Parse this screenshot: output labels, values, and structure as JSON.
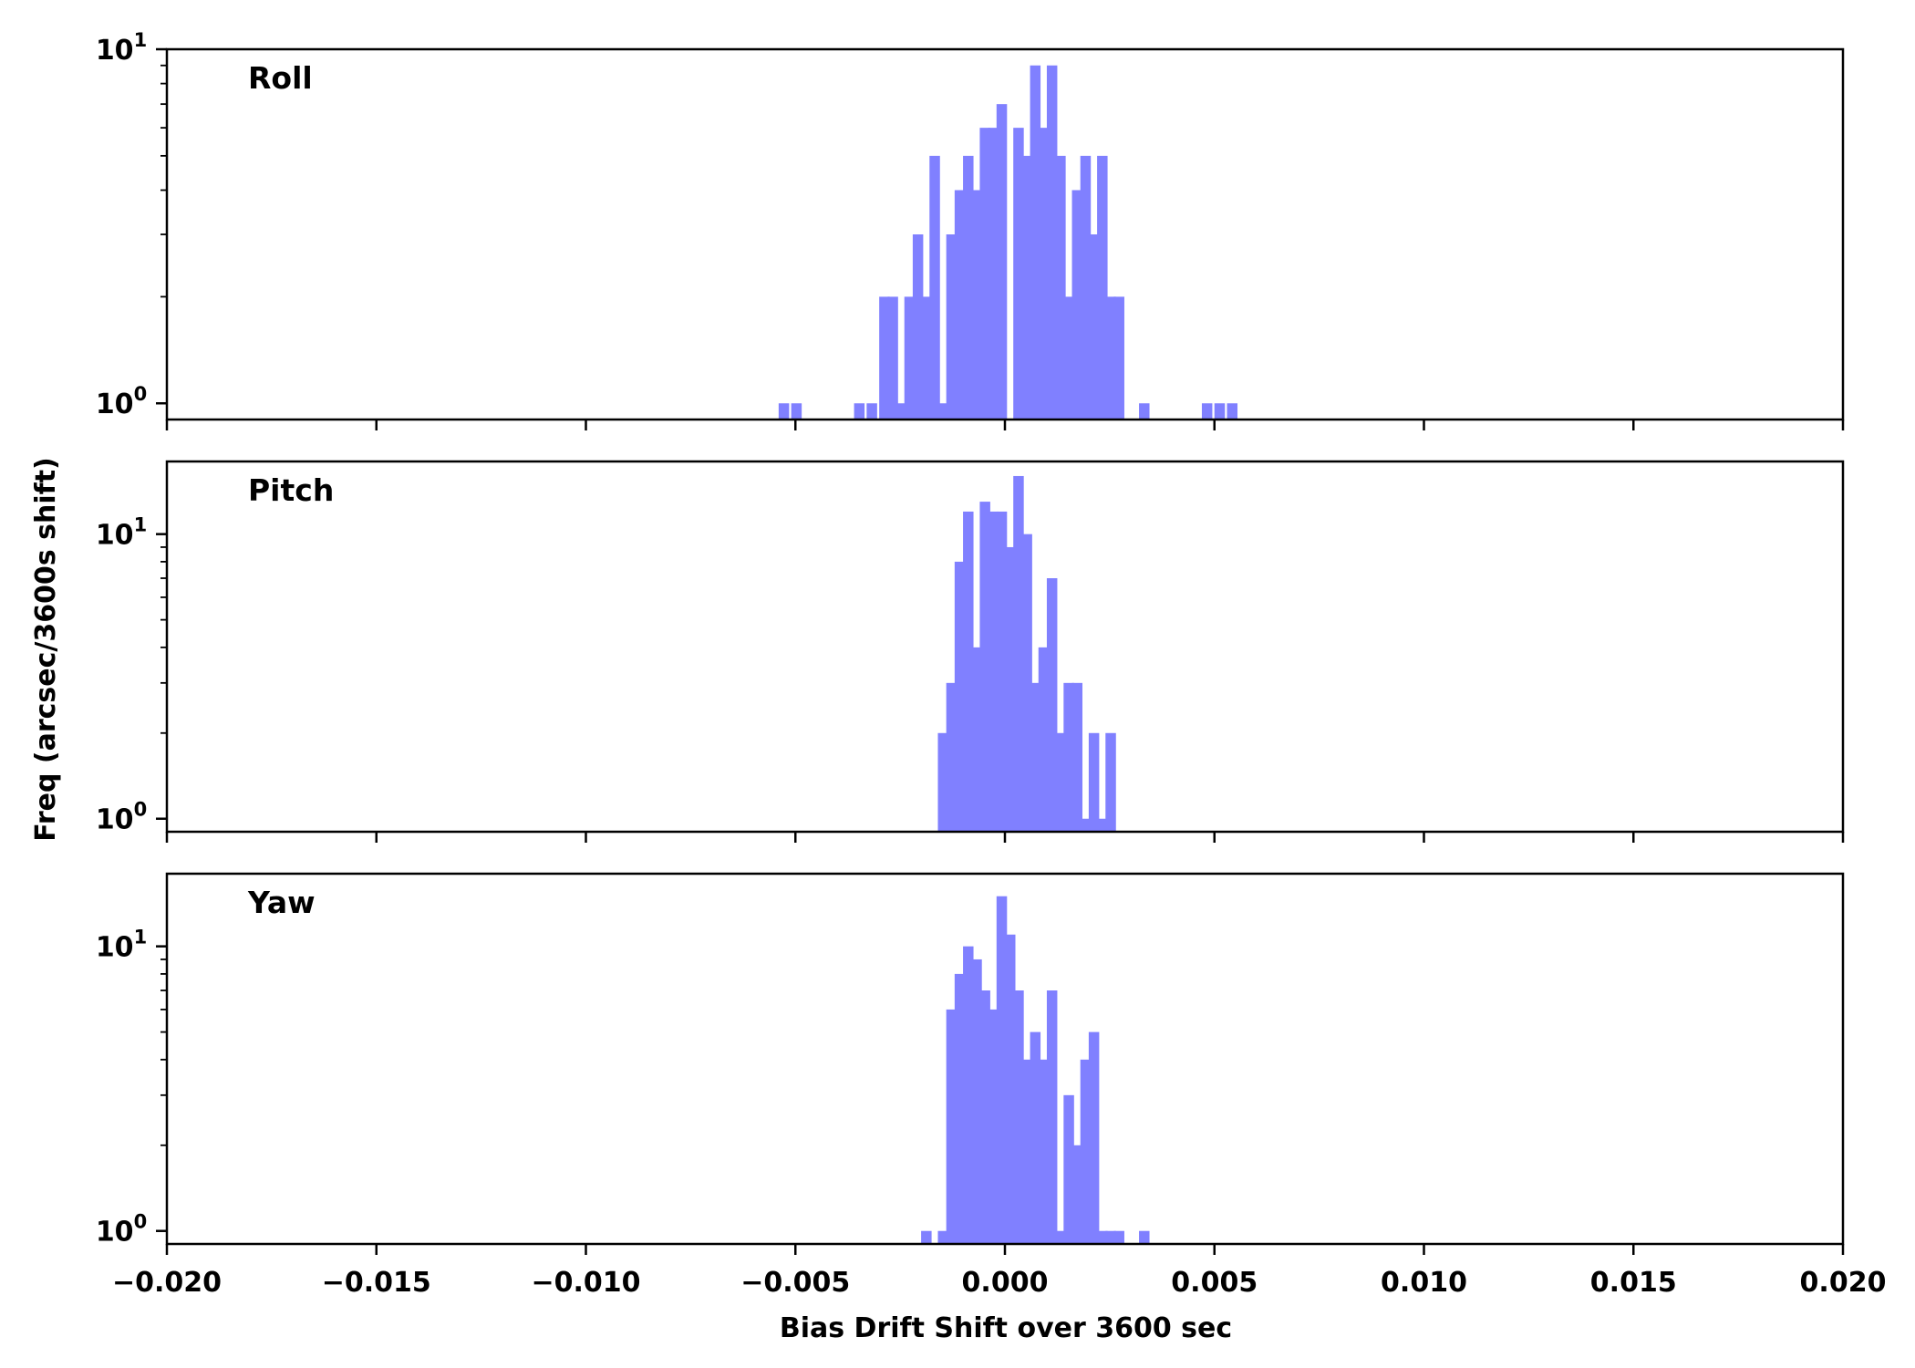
{
  "chart_data": {
    "type": "bar",
    "xlabel": "Bias Drift Shift over 3600 sec",
    "ylabel": "Freq (arcsec/3600s shift)",
    "xlim": [
      -0.02,
      0.02
    ],
    "x_ticks": [
      "−0.020",
      "−0.015",
      "−0.010",
      "−0.005",
      "0.000",
      "0.005",
      "0.010",
      "0.015",
      "0.020"
    ],
    "y_scale": "log",
    "y_tick_base": "10",
    "bar_color": "#8080ff",
    "bin_width": 0.00025,
    "grid": false,
    "panels": [
      {
        "label": "Roll",
        "ylim": [
          0.9,
          10
        ],
        "y_ticks": [
          {
            "value": 1,
            "exp": "0"
          },
          {
            "value": 10,
            "exp": "1"
          }
        ],
        "bins_x": [
          -0.0054,
          -0.0051,
          -0.0036,
          -0.0033,
          -0.003,
          -0.0028,
          -0.0026,
          -0.0024,
          -0.0022,
          -0.002,
          -0.0018,
          -0.0016,
          -0.0014,
          -0.0012,
          -0.001,
          -0.0008,
          -0.0006,
          -0.0004,
          -0.0002,
          0.0002,
          0.0004,
          0.0006,
          0.0008,
          0.001,
          0.0012,
          0.0014,
          0.0016,
          0.0018,
          0.002,
          0.0022,
          0.0024,
          0.0026,
          0.0032,
          0.0047,
          0.005,
          0.0053
        ],
        "values": [
          1,
          1,
          1,
          1,
          2,
          2,
          1,
          2,
          3,
          2,
          5,
          1,
          3,
          4,
          5,
          4,
          6,
          6,
          7,
          6,
          5,
          9,
          6,
          9,
          5,
          2,
          4,
          5,
          3,
          5,
          2,
          2,
          1,
          1,
          1,
          1
        ]
      },
      {
        "label": "Pitch",
        "ylim": [
          0.9,
          18
        ],
        "y_ticks": [
          {
            "value": 1,
            "exp": "0"
          },
          {
            "value": 10,
            "exp": "1"
          }
        ],
        "bins_x": [
          -0.0016,
          -0.0014,
          -0.0012,
          -0.001,
          -0.0008,
          -0.0006,
          -0.0004,
          -0.0002,
          0.0,
          0.0002,
          0.0004,
          0.0006,
          0.0008,
          0.001,
          0.0012,
          0.0014,
          0.0016,
          0.0018,
          0.002,
          0.0022,
          0.0024
        ],
        "values": [
          2,
          3,
          8,
          12,
          4,
          13,
          12,
          12,
          9,
          16,
          10,
          3,
          4,
          7,
          2,
          3,
          3,
          1,
          2,
          1,
          2
        ]
      },
      {
        "label": "Yaw",
        "ylim": [
          0.9,
          18
        ],
        "y_ticks": [
          {
            "value": 1,
            "exp": "0"
          },
          {
            "value": 10,
            "exp": "1"
          }
        ],
        "bins_x": [
          -0.002,
          -0.0016,
          -0.0014,
          -0.0012,
          -0.001,
          -0.0008,
          -0.0006,
          -0.0004,
          -0.0002,
          0.0,
          0.0002,
          0.0004,
          0.0006,
          0.0008,
          0.001,
          0.0012,
          0.0014,
          0.0016,
          0.0018,
          0.002,
          0.0022,
          0.0024,
          0.0026,
          0.0032
        ],
        "values": [
          1,
          1,
          6,
          8,
          10,
          9,
          7,
          6,
          15,
          11,
          7,
          4,
          5,
          4,
          7,
          1,
          3,
          2,
          4,
          5,
          1,
          1,
          1,
          1
        ]
      }
    ]
  }
}
